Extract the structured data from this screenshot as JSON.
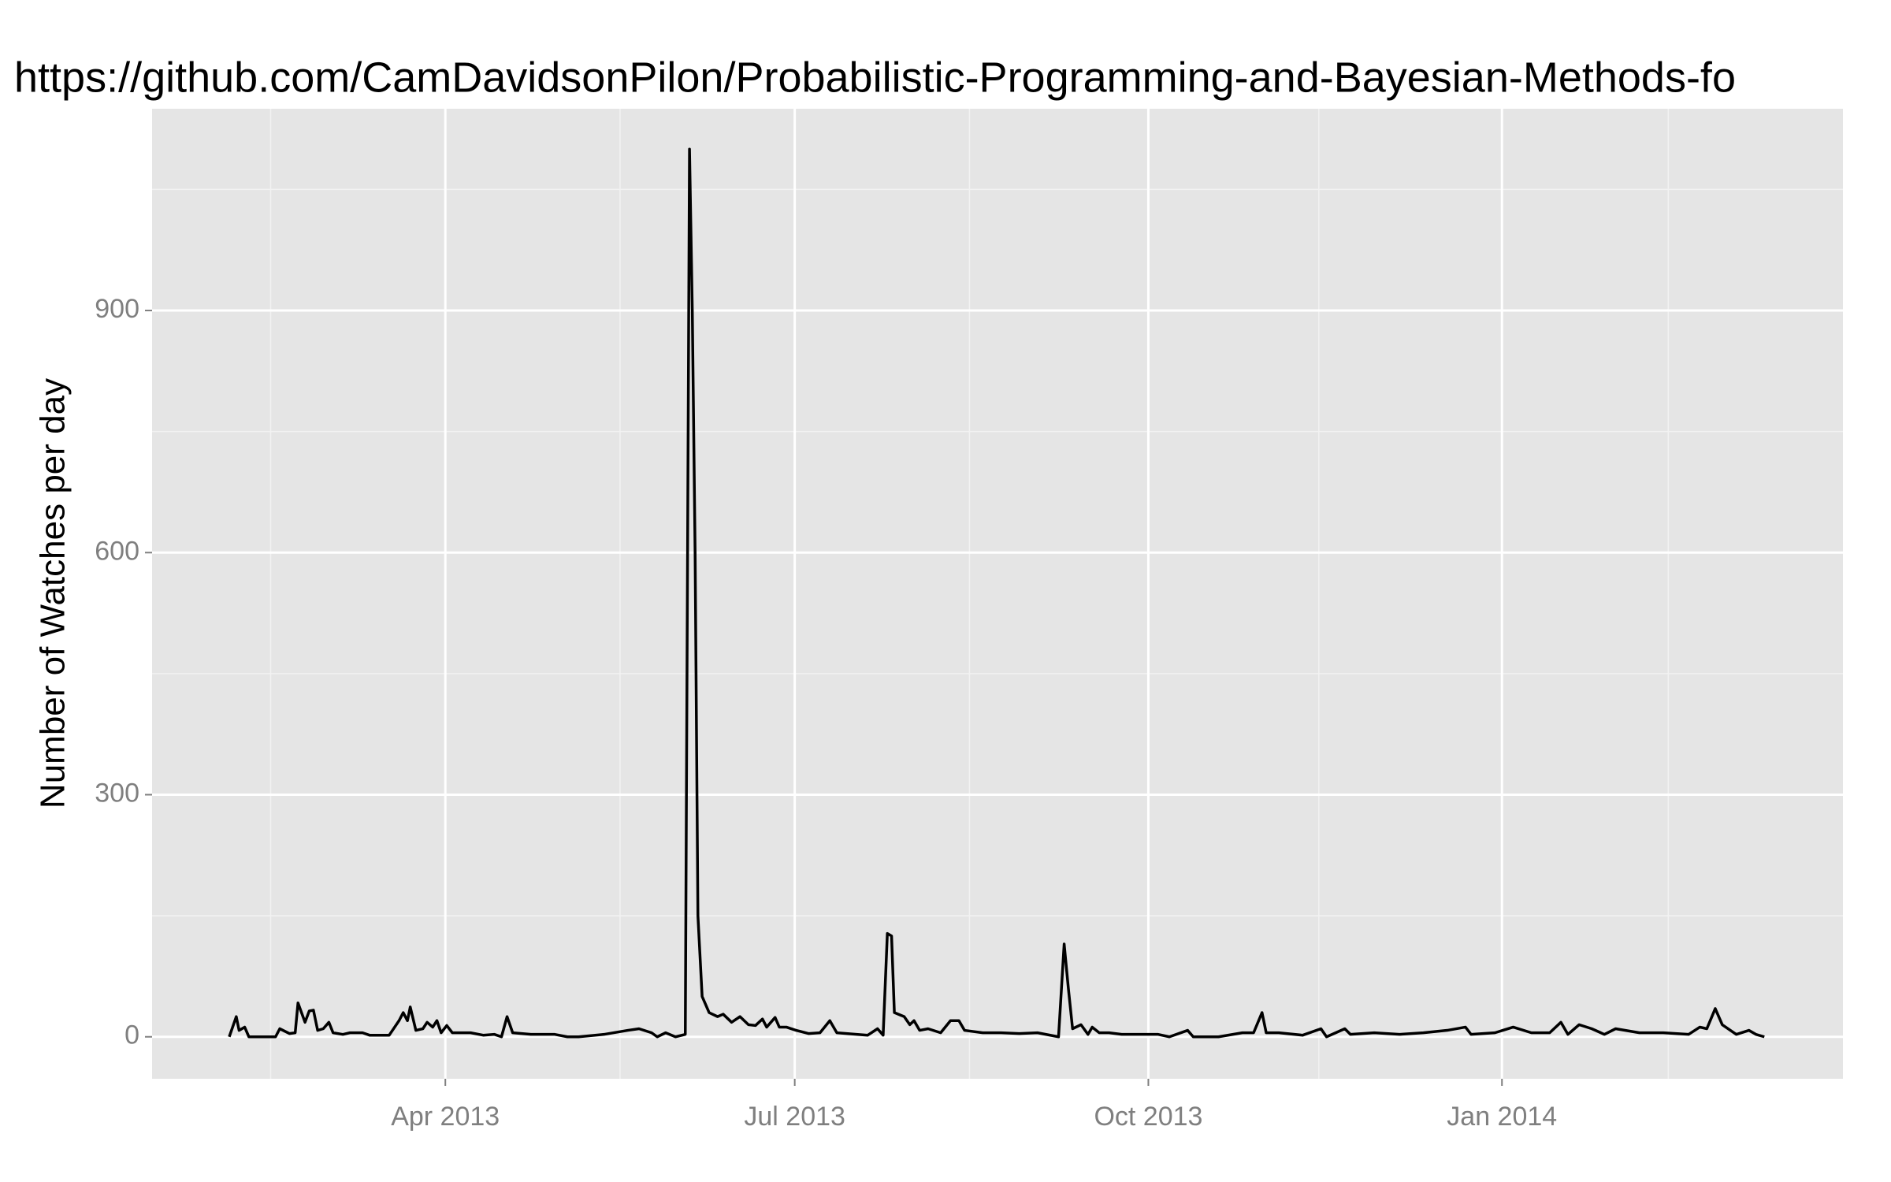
{
  "chart_data": {
    "type": "line",
    "title": "https://github.com/CamDavidsonPilon/Probabilistic-Programming-and-Bayesian-Methods-fo",
    "y_label": "Number of Watches per day",
    "x": [
      2013.093,
      2013.098,
      2013.1,
      2013.104,
      2013.107,
      2013.126,
      2013.129,
      2013.136,
      2013.14,
      2013.142,
      2013.147,
      2013.15,
      2013.153,
      2013.156,
      2013.16,
      2013.164,
      2013.167,
      2013.174,
      2013.179,
      2013.188,
      2013.193,
      2013.207,
      2013.214,
      2013.217,
      2013.22,
      2013.222,
      2013.226,
      2013.231,
      2013.234,
      2013.238,
      2013.241,
      2013.244,
      2013.248,
      2013.252,
      2013.265,
      2013.274,
      2013.282,
      2013.287,
      2013.291,
      2013.295,
      2013.308,
      2013.325,
      2013.334,
      2013.342,
      2013.36,
      2013.377,
      2013.385,
      2013.394,
      2013.398,
      2013.404,
      2013.411,
      2013.418,
      2013.421,
      2013.423,
      2013.425,
      2013.427,
      2013.43,
      2013.435,
      2013.441,
      2013.445,
      2013.451,
      2013.457,
      2013.463,
      2013.468,
      2013.473,
      2013.476,
      2013.482,
      2013.485,
      2013.49,
      2013.497,
      2013.506,
      2013.514,
      2013.521,
      2013.526,
      2013.54,
      2013.548,
      2013.555,
      2013.559,
      2013.562,
      2013.565,
      2013.567,
      2013.574,
      2013.578,
      2013.581,
      2013.585,
      2013.591,
      2013.6,
      2013.607,
      2013.613,
      2013.617,
      2013.63,
      2013.643,
      2013.656,
      2013.669,
      2013.684,
      2013.688,
      2013.691,
      2013.694,
      2013.7,
      2013.705,
      2013.708,
      2013.713,
      2013.72,
      2013.729,
      2013.746,
      2013.755,
      2013.763,
      2013.776,
      2013.78,
      2013.798,
      2013.815,
      2013.823,
      2013.829,
      2013.832,
      2013.841,
      2013.858,
      2013.871,
      2013.875,
      2013.888,
      2013.892,
      2013.909,
      2013.927,
      2013.944,
      2013.961,
      2013.974,
      2013.978,
      2013.995,
      2014.008,
      2014.021,
      2014.034,
      2014.042,
      2014.047,
      2014.055,
      2014.064,
      2014.073,
      2014.081,
      2014.098,
      2014.115,
      2014.133,
      2014.141,
      2014.146,
      2014.152,
      2014.157,
      2014.167,
      2014.176,
      2014.181,
      2014.187
    ],
    "values": [
      0,
      25,
      8,
      12,
      0,
      0,
      10,
      4,
      5,
      42,
      18,
      32,
      33,
      8,
      10,
      18,
      5,
      3,
      5,
      5,
      2,
      2,
      20,
      30,
      20,
      37,
      8,
      10,
      18,
      12,
      20,
      5,
      14,
      5,
      5,
      2,
      3,
      0,
      25,
      5,
      3,
      3,
      0,
      0,
      3,
      8,
      10,
      5,
      0,
      5,
      0,
      3,
      1100,
      900,
      600,
      150,
      50,
      30,
      25,
      28,
      18,
      25,
      15,
      14,
      22,
      12,
      24,
      12,
      12,
      8,
      4,
      5,
      20,
      5,
      3,
      2,
      10,
      2,
      128,
      125,
      30,
      25,
      15,
      20,
      8,
      10,
      5,
      20,
      20,
      8,
      5,
      5,
      4,
      5,
      0,
      115,
      60,
      10,
      15,
      3,
      12,
      5,
      5,
      3,
      3,
      3,
      0,
      8,
      0,
      0,
      5,
      5,
      30,
      5,
      5,
      2,
      10,
      0,
      10,
      3,
      5,
      3,
      5,
      8,
      12,
      3,
      5,
      12,
      5,
      5,
      18,
      3,
      15,
      10,
      3,
      10,
      5,
      5,
      3,
      12,
      10,
      35,
      15,
      3,
      8,
      3,
      0
    ],
    "color": "#000000",
    "xlim": [
      2013.038,
      2014.243
    ],
    "xticks": [
      {
        "value": 2013.247,
        "label": "Apr 2013"
      },
      {
        "value": 2013.496,
        "label": "Jul 2013"
      },
      {
        "value": 2013.748,
        "label": "Oct 2013"
      },
      {
        "value": 2014.0,
        "label": "Jan 2014"
      }
    ],
    "ylim": [
      -52,
      1150
    ],
    "yticks": [
      0,
      300,
      600,
      900
    ],
    "grid": true
  }
}
